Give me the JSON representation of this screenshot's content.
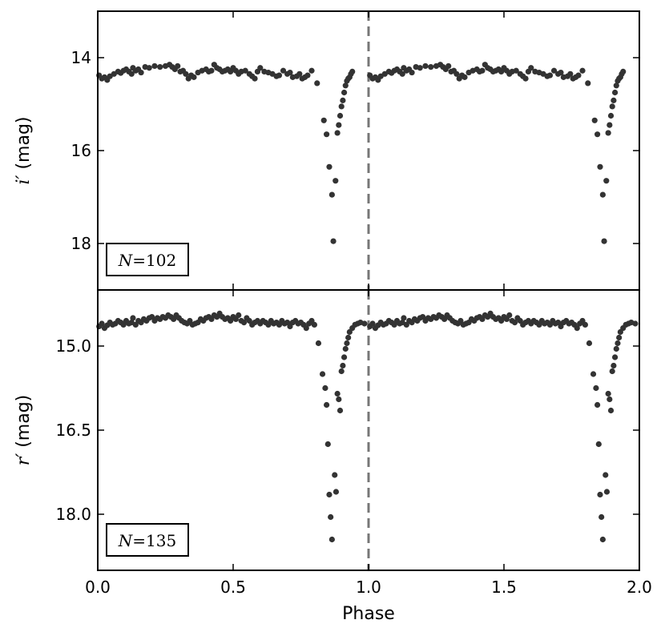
{
  "chart_data": [
    {
      "type": "scatter",
      "panel": "top",
      "ylabel_symbol": "i′",
      "ylabel_unit": " (mag)",
      "xlim": [
        0.0,
        2.0
      ],
      "ylim": [
        19.0,
        13.0
      ],
      "y_inverted": true,
      "yticks": [
        14,
        16,
        18
      ],
      "ytick_labels": [
        "14",
        "16",
        "18"
      ],
      "annotation": "N=102",
      "annotation_symbol": "N",
      "annotation_value": "=102",
      "point_color": "#333333",
      "vline_x": 1.0,
      "points": [
        [
          0.005,
          14.38
        ],
        [
          0.015,
          14.45
        ],
        [
          0.025,
          14.42
        ],
        [
          0.035,
          14.48
        ],
        [
          0.045,
          14.4
        ],
        [
          0.06,
          14.35
        ],
        [
          0.075,
          14.3
        ],
        [
          0.085,
          14.33
        ],
        [
          0.095,
          14.28
        ],
        [
          0.105,
          14.25
        ],
        [
          0.115,
          14.3
        ],
        [
          0.125,
          14.35
        ],
        [
          0.13,
          14.22
        ],
        [
          0.14,
          14.28
        ],
        [
          0.15,
          14.25
        ],
        [
          0.16,
          14.32
        ],
        [
          0.175,
          14.2
        ],
        [
          0.19,
          14.22
        ],
        [
          0.21,
          14.18
        ],
        [
          0.23,
          14.2
        ],
        [
          0.25,
          14.18
        ],
        [
          0.265,
          14.15
        ],
        [
          0.275,
          14.2
        ],
        [
          0.285,
          14.25
        ],
        [
          0.295,
          14.18
        ],
        [
          0.305,
          14.3
        ],
        [
          0.315,
          14.28
        ],
        [
          0.325,
          14.35
        ],
        [
          0.335,
          14.45
        ],
        [
          0.345,
          14.38
        ],
        [
          0.355,
          14.42
        ],
        [
          0.37,
          14.32
        ],
        [
          0.385,
          14.28
        ],
        [
          0.4,
          14.25
        ],
        [
          0.41,
          14.3
        ],
        [
          0.42,
          14.28
        ],
        [
          0.43,
          14.15
        ],
        [
          0.44,
          14.22
        ],
        [
          0.45,
          14.25
        ],
        [
          0.46,
          14.3
        ],
        [
          0.47,
          14.28
        ],
        [
          0.48,
          14.25
        ],
        [
          0.49,
          14.3
        ],
        [
          0.5,
          14.22
        ],
        [
          0.51,
          14.28
        ],
        [
          0.52,
          14.35
        ],
        [
          0.53,
          14.3
        ],
        [
          0.545,
          14.28
        ],
        [
          0.56,
          14.35
        ],
        [
          0.57,
          14.4
        ],
        [
          0.58,
          14.45
        ],
        [
          0.59,
          14.3
        ],
        [
          0.6,
          14.22
        ],
        [
          0.615,
          14.3
        ],
        [
          0.63,
          14.32
        ],
        [
          0.645,
          14.35
        ],
        [
          0.66,
          14.4
        ],
        [
          0.67,
          14.38
        ],
        [
          0.685,
          14.28
        ],
        [
          0.7,
          14.35
        ],
        [
          0.71,
          14.32
        ],
        [
          0.72,
          14.42
        ],
        [
          0.735,
          14.4
        ],
        [
          0.745,
          14.35
        ],
        [
          0.755,
          14.45
        ],
        [
          0.765,
          14.42
        ],
        [
          0.775,
          14.38
        ],
        [
          0.79,
          14.28
        ],
        [
          0.81,
          14.55
        ],
        [
          0.835,
          15.35
        ],
        [
          0.845,
          15.65
        ],
        [
          0.855,
          16.35
        ],
        [
          0.865,
          16.95
        ],
        [
          0.87,
          17.95
        ],
        [
          0.878,
          16.65
        ],
        [
          0.885,
          15.62
        ],
        [
          0.89,
          15.45
        ],
        [
          0.895,
          15.25
        ],
        [
          0.9,
          15.05
        ],
        [
          0.905,
          14.92
        ],
        [
          0.91,
          14.75
        ],
        [
          0.915,
          14.6
        ],
        [
          0.92,
          14.5
        ],
        [
          0.925,
          14.45
        ],
        [
          0.93,
          14.42
        ],
        [
          0.935,
          14.35
        ],
        [
          0.94,
          14.3
        ]
      ]
    },
    {
      "type": "scatter",
      "panel": "bottom",
      "xlabel": "Phase",
      "ylabel_symbol": "r′",
      "ylabel_unit": " (mag)",
      "xlim": [
        0.0,
        2.0
      ],
      "xticks": [
        0.0,
        0.5,
        1.0,
        1.5,
        2.0
      ],
      "xtick_labels": [
        "0.0",
        "0.5",
        "1.0",
        "1.5",
        "2.0"
      ],
      "ylim": [
        19.0,
        14.0
      ],
      "y_inverted": true,
      "yticks": [
        15.0,
        16.5,
        18.0
      ],
      "ytick_labels": [
        "15.0",
        "16.5",
        "18.0"
      ],
      "annotation": "N=135",
      "annotation_symbol": "N",
      "annotation_value": "=135",
      "point_color": "#333333",
      "vline_x": 1.0,
      "points": [
        [
          0.005,
          14.65
        ],
        [
          0.015,
          14.6
        ],
        [
          0.025,
          14.68
        ],
        [
          0.035,
          14.63
        ],
        [
          0.045,
          14.58
        ],
        [
          0.055,
          14.62
        ],
        [
          0.065,
          14.6
        ],
        [
          0.075,
          14.55
        ],
        [
          0.085,
          14.58
        ],
        [
          0.095,
          14.62
        ],
        [
          0.105,
          14.55
        ],
        [
          0.115,
          14.6
        ],
        [
          0.125,
          14.58
        ],
        [
          0.13,
          14.5
        ],
        [
          0.14,
          14.62
        ],
        [
          0.15,
          14.55
        ],
        [
          0.16,
          14.58
        ],
        [
          0.17,
          14.52
        ],
        [
          0.18,
          14.55
        ],
        [
          0.19,
          14.5
        ],
        [
          0.2,
          14.48
        ],
        [
          0.21,
          14.55
        ],
        [
          0.22,
          14.5
        ],
        [
          0.23,
          14.52
        ],
        [
          0.24,
          14.48
        ],
        [
          0.25,
          14.5
        ],
        [
          0.26,
          14.45
        ],
        [
          0.27,
          14.48
        ],
        [
          0.28,
          14.52
        ],
        [
          0.29,
          14.45
        ],
        [
          0.3,
          14.5
        ],
        [
          0.31,
          14.55
        ],
        [
          0.32,
          14.58
        ],
        [
          0.33,
          14.6
        ],
        [
          0.34,
          14.55
        ],
        [
          0.35,
          14.62
        ],
        [
          0.36,
          14.6
        ],
        [
          0.37,
          14.58
        ],
        [
          0.38,
          14.52
        ],
        [
          0.39,
          14.55
        ],
        [
          0.4,
          14.5
        ],
        [
          0.41,
          14.48
        ],
        [
          0.42,
          14.52
        ],
        [
          0.43,
          14.45
        ],
        [
          0.44,
          14.48
        ],
        [
          0.45,
          14.42
        ],
        [
          0.46,
          14.48
        ],
        [
          0.47,
          14.52
        ],
        [
          0.48,
          14.5
        ],
        [
          0.49,
          14.55
        ],
        [
          0.5,
          14.48
        ],
        [
          0.51,
          14.52
        ],
        [
          0.52,
          14.45
        ],
        [
          0.53,
          14.55
        ],
        [
          0.54,
          14.58
        ],
        [
          0.55,
          14.5
        ],
        [
          0.56,
          14.55
        ],
        [
          0.57,
          14.62
        ],
        [
          0.58,
          14.58
        ],
        [
          0.59,
          14.55
        ],
        [
          0.6,
          14.6
        ],
        [
          0.61,
          14.55
        ],
        [
          0.62,
          14.58
        ],
        [
          0.63,
          14.62
        ],
        [
          0.64,
          14.55
        ],
        [
          0.65,
          14.6
        ],
        [
          0.66,
          14.58
        ],
        [
          0.67,
          14.62
        ],
        [
          0.68,
          14.55
        ],
        [
          0.69,
          14.6
        ],
        [
          0.7,
          14.58
        ],
        [
          0.71,
          14.65
        ],
        [
          0.72,
          14.58
        ],
        [
          0.73,
          14.55
        ],
        [
          0.74,
          14.6
        ],
        [
          0.75,
          14.58
        ],
        [
          0.76,
          14.62
        ],
        [
          0.77,
          14.68
        ],
        [
          0.78,
          14.6
        ],
        [
          0.79,
          14.55
        ],
        [
          0.8,
          14.62
        ],
        [
          0.815,
          14.95
        ],
        [
          0.83,
          15.5
        ],
        [
          0.84,
          15.75
        ],
        [
          0.845,
          16.05
        ],
        [
          0.85,
          16.75
        ],
        [
          0.855,
          17.65
        ],
        [
          0.86,
          18.05
        ],
        [
          0.865,
          18.45
        ],
        [
          0.875,
          17.3
        ],
        [
          0.88,
          17.6
        ],
        [
          0.885,
          15.85
        ],
        [
          0.89,
          15.95
        ],
        [
          0.895,
          16.15
        ],
        [
          0.9,
          15.45
        ],
        [
          0.905,
          15.35
        ],
        [
          0.91,
          15.2
        ],
        [
          0.915,
          15.05
        ],
        [
          0.92,
          14.95
        ],
        [
          0.925,
          14.85
        ],
        [
          0.93,
          14.75
        ],
        [
          0.94,
          14.68
        ],
        [
          0.95,
          14.62
        ],
        [
          0.96,
          14.6
        ],
        [
          0.97,
          14.58
        ],
        [
          0.985,
          14.6
        ]
      ]
    }
  ]
}
